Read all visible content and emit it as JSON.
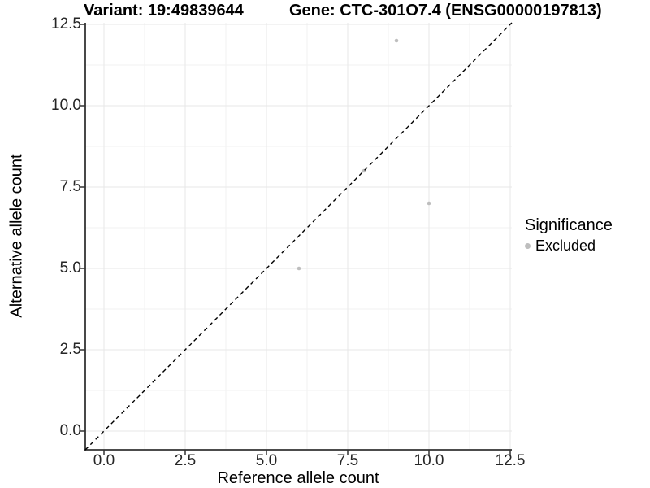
{
  "chart_data": {
    "type": "scatter",
    "title_variant": "Variant: 19:49839644",
    "title_gene": "Gene: CTC-301O7.4 (ENSG00000197813)",
    "xlabel": "Reference allele count",
    "ylabel": "Alternative allele count",
    "x_ticks": [
      0.0,
      2.5,
      5.0,
      7.5,
      10.0,
      12.5
    ],
    "y_ticks": [
      0.0,
      2.5,
      5.0,
      7.5,
      10.0,
      12.5
    ],
    "x_tick_labels": [
      "0.0",
      "2.5",
      "5.0",
      "7.5",
      "10.0",
      "12.5"
    ],
    "y_tick_labels": [
      "0.0",
      "2.5",
      "5.0",
      "7.5",
      "10.0",
      "12.5"
    ],
    "xlim": [
      -0.575,
      12.55
    ],
    "ylim": [
      -0.575,
      12.55
    ],
    "grid": "major+minor",
    "series": [
      {
        "name": "Excluded",
        "color": "#bebebe",
        "points": [
          {
            "x": 6,
            "y": 5
          },
          {
            "x": 8,
            "y": 8
          },
          {
            "x": 9,
            "y": 12
          },
          {
            "x": 10,
            "y": 7
          }
        ]
      }
    ],
    "identity_line": {
      "slope": 1,
      "intercept": 0,
      "style": "dashed",
      "color": "#000000"
    },
    "legend": {
      "title": "Significance",
      "position": "right",
      "entries": [
        {
          "label": "Excluded",
          "color": "#bebebe"
        }
      ]
    },
    "colors": {
      "grid_major": "#e7e7e7",
      "grid_minor": "#f2f2f2",
      "axis_line": "#333333",
      "tick_mark": "#333333"
    }
  }
}
